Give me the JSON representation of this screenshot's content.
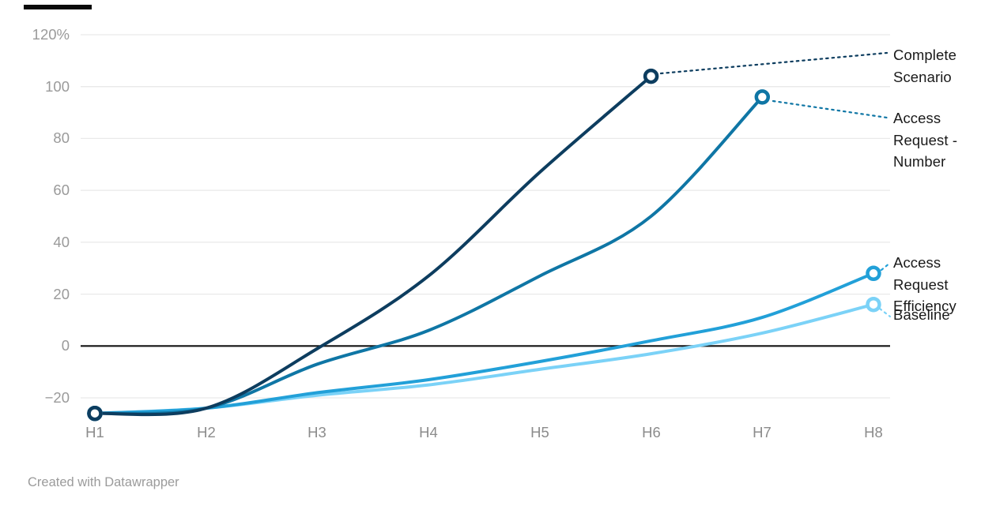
{
  "chart_data": {
    "type": "line",
    "x_categories": [
      "H1",
      "H2",
      "H3",
      "H4",
      "H5",
      "H6",
      "H7",
      "H8"
    ],
    "y_axis": {
      "tick_labels": [
        "120%",
        "100",
        "80",
        "60",
        "40",
        "20",
        "0",
        "−20"
      ],
      "tick_values": [
        120,
        100,
        80,
        60,
        40,
        20,
        0,
        -20
      ],
      "unit": "%"
    },
    "ylim": [
      -32,
      128
    ],
    "grid": "on",
    "legend_position": "right-edge-direct-labels",
    "series": [
      {
        "name": "Complete Scenario",
        "color": "#0d3d5f",
        "values": [
          -26,
          -24,
          -1,
          27,
          67,
          104
        ]
      },
      {
        "name": "Access Request - Number",
        "color": "#0f76a5",
        "values": [
          -26,
          -24,
          -7,
          6,
          27,
          50,
          96
        ]
      },
      {
        "name": "Access Request Efficiency",
        "color": "#22a0d8",
        "values": [
          -26,
          -24,
          -18,
          -13,
          -6,
          2,
          11,
          28
        ]
      },
      {
        "name": "Baseline",
        "color": "#7bd2f7",
        "values": [
          -26,
          -24,
          -19,
          -15,
          -9,
          -3,
          5,
          16
        ]
      }
    ],
    "colors": {
      "gridline": "#e9e9e9",
      "zero_line": "#141414",
      "y_tick_text": "#9a9a9a",
      "x_tick_text": "#8c8c8c",
      "series_label_text": "#1a1a1a"
    }
  },
  "footer": {
    "credit": "Created with Datawrapper"
  }
}
